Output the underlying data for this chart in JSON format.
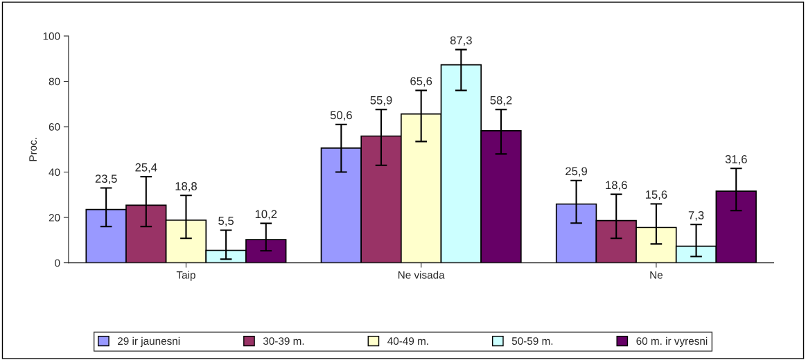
{
  "chart_data": {
    "type": "bar",
    "ylabel": "Proc.",
    "categories": [
      "Taip",
      "Ne visada",
      "Ne"
    ],
    "ylim": [
      0,
      100
    ],
    "yticks": [
      0,
      20,
      40,
      60,
      80,
      100
    ],
    "grid": false,
    "legend": "bottom",
    "series": [
      {
        "name": "29 ir jaunesni",
        "color": "#9999ff",
        "values": [
          23.5,
          50.6,
          25.9
        ],
        "value_labels": [
          "23,5",
          "50,6",
          "25,9"
        ],
        "errors": [
          [
            16,
            33
          ],
          [
            40,
            61
          ],
          [
            17.5,
            36.3
          ]
        ]
      },
      {
        "name": "30-39 m.",
        "color": "#993366",
        "values": [
          25.4,
          55.9,
          18.6
        ],
        "value_labels": [
          "25,4",
          "55,9",
          "18,6"
        ],
        "errors": [
          [
            16,
            38
          ],
          [
            43,
            67.6
          ],
          [
            10.8,
            30.2
          ]
        ]
      },
      {
        "name": "40-49 m.",
        "color": "#ffffcc",
        "values": [
          18.8,
          65.6,
          15.6
        ],
        "value_labels": [
          "18,8",
          "65,6",
          "15,6"
        ],
        "errors": [
          [
            10.8,
            29.7
          ],
          [
            53.5,
            76
          ],
          [
            8.3,
            26
          ]
        ]
      },
      {
        "name": "50-59 m.",
        "color": "#ccffff",
        "values": [
          5.5,
          87.3,
          7.3
        ],
        "value_labels": [
          "5,5",
          "87,3",
          "7,3"
        ],
        "errors": [
          [
            1.6,
            14.4
          ],
          [
            76,
            94
          ],
          [
            2.8,
            16.9
          ]
        ]
      },
      {
        "name": "60 m. ir vyresni",
        "color": "#660066",
        "values": [
          10.2,
          58.2,
          31.6
        ],
        "value_labels": [
          "10,2",
          "58,2",
          "31,6"
        ],
        "errors": [
          [
            5.3,
            17.4
          ],
          [
            48,
            67.6
          ],
          [
            23,
            41.6
          ]
        ]
      }
    ]
  }
}
